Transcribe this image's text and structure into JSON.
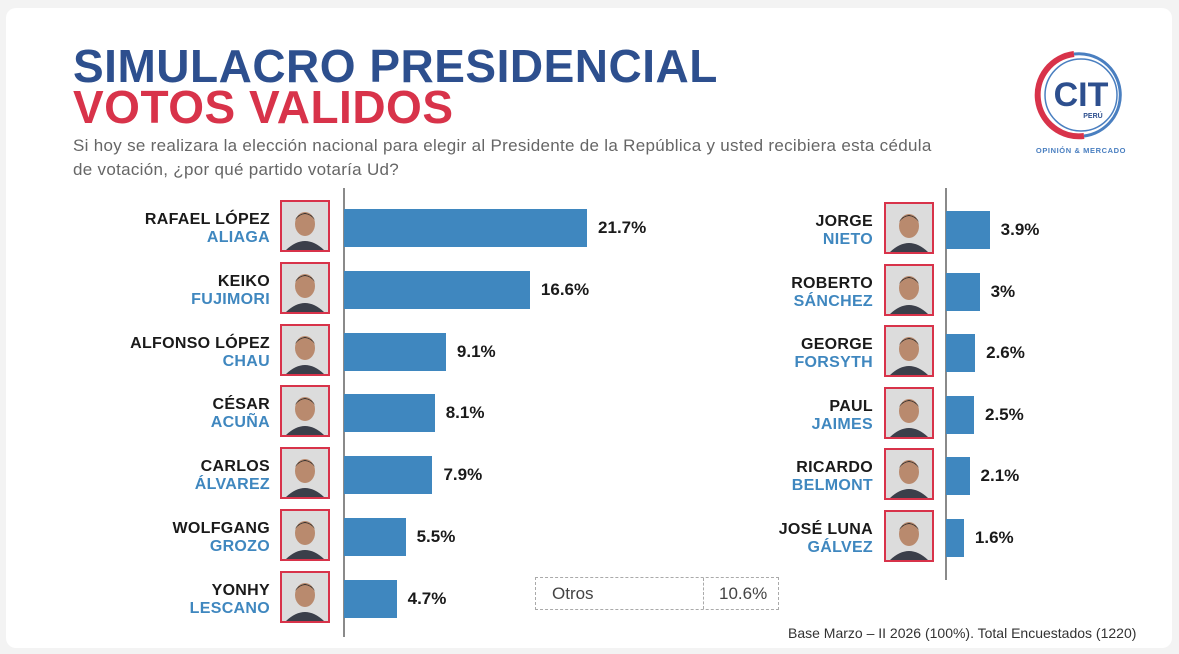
{
  "header": {
    "title_line1": "SIMULACRO PRESIDENCIAL",
    "title_line2": "VOTOS VALIDOS",
    "subtitle": "Si hoy se realizara la elección nacional para elegir al Presidente de la República y usted recibiera esta cédula de votación, ¿por qué partido votaría Ud?"
  },
  "logo": {
    "text": "CIT",
    "country": "PERÚ",
    "tagline": "OPINIÓN & MERCADO",
    "colors": {
      "red": "#d8334a",
      "blue": "#4a7fc0"
    }
  },
  "otros": {
    "label": "Otros",
    "value": "10.6%"
  },
  "footer": "Base Marzo – II 2026  (100%). Total Encuestados (1220)",
  "colors": {
    "bar": "#3f87bf",
    "first_name": "#1a1a1a",
    "last_name": "#3f87bf",
    "photo_border": "#d8334a"
  },
  "chart_data": {
    "type": "bar",
    "orientation": "horizontal",
    "unit": "%",
    "title": "SIMULACRO PRESIDENCIAL VOTOS VALIDOS",
    "columns": [
      {
        "candidates": [
          {
            "first": "RAFAEL LÓPEZ",
            "last": "ALIAGA",
            "value": 21.7,
            "label": "21.7%"
          },
          {
            "first": "KEIKO",
            "last": "FUJIMORI",
            "value": 16.6,
            "label": "16.6%"
          },
          {
            "first": "ALFONSO LÓPEZ",
            "last": "CHAU",
            "value": 9.1,
            "label": "9.1%"
          },
          {
            "first": "CÉSAR",
            "last": "ACUÑA",
            "value": 8.1,
            "label": "8.1%"
          },
          {
            "first": "CARLOS",
            "last": "ÁLVAREZ",
            "value": 7.9,
            "label": "7.9%"
          },
          {
            "first": "WOLFGANG",
            "last": "GROZO",
            "value": 5.5,
            "label": "5.5%"
          },
          {
            "first": "YONHY",
            "last": "LESCANO",
            "value": 4.7,
            "label": "4.7%"
          }
        ]
      },
      {
        "candidates": [
          {
            "first": "JORGE",
            "last": "NIETO",
            "value": 3.9,
            "label": "3.9%"
          },
          {
            "first": "ROBERTO",
            "last": "SÁNCHEZ",
            "value": 3,
            "label": "3%"
          },
          {
            "first": "GEORGE",
            "last": "FORSYTH",
            "value": 2.6,
            "label": "2.6%"
          },
          {
            "first": "PAUL",
            "last": "JAIMES",
            "value": 2.5,
            "label": "2.5%"
          },
          {
            "first": "RICARDO",
            "last": "BELMONT",
            "value": 2.1,
            "label": "2.1%"
          },
          {
            "first": "JOSÉ LUNA",
            "last": "GÁLVEZ",
            "value": 1.6,
            "label": "1.6%"
          }
        ]
      }
    ]
  }
}
